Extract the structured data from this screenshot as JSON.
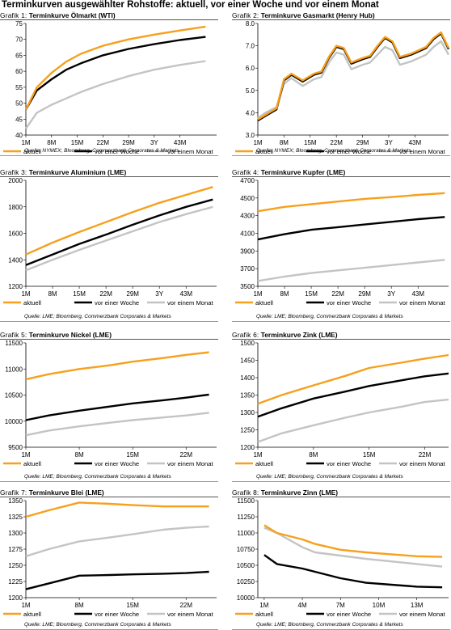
{
  "page_title": "Terminkurven ausgewählter Rohstoffe: aktuell, vor einer Woche und vor einem Monat",
  "colors": {
    "aktuell": "#F7A01C",
    "woche": "#000000",
    "monat": "#C4C4C4"
  },
  "panels": [
    {
      "label": "Grafik 1:",
      "name": "Terminkurve Ölmarkt (WTI)",
      "source": "Quelle: NYMEX; Bloomberg, Commerzbank Corporates & Markets"
    },
    {
      "label": "Grafik 2:",
      "name": "Terminkurve Gasmarkt (Henry Hub)",
      "source": "Quelle: NYMEX; Bloomberg, Commerzbank Corporates & Markets"
    },
    {
      "label": "Grafik 3:",
      "name": "Terminkurve Aluminium (LME)",
      "source": "Quelle: LME; Bloomberg, Commerzbank Corporates & Markets"
    },
    {
      "label": "Grafik 4:",
      "name": "Terminkurve Kupfer (LME)",
      "source": "Quelle: LME; Bloomberg, Commerzbank Corporates & Markets"
    },
    {
      "label": "Grafik 5:",
      "name": "Terminkurve Nickel (LME)",
      "source": "Quelle: LME; Bloomberg, Commerzbank Corporates & Markets"
    },
    {
      "label": "Grafik 6:",
      "name": "Terminkurve Zink (LME)",
      "source": "Quelle: LME; Bloomberg, Commerzbank Corporates & Markets"
    },
    {
      "label": "Grafik 7:",
      "name": "Terminkurve Blei (LME)",
      "source": "Quelle: LME; Bloomberg, Commerzbank Corporates & Markets"
    },
    {
      "label": "Grafik 8:",
      "name": "Terminkurve Zinn (LME)",
      "source": "Quelle: LME; Bloomberg, Commerzbank Corporates & Markets"
    }
  ],
  "chart_data": [
    {
      "type": "line",
      "title": "Terminkurve Ölmarkt (WTI)",
      "x": [
        1,
        4,
        8,
        12,
        16,
        22,
        29,
        36,
        43,
        50
      ],
      "xlim": [
        1,
        53
      ],
      "xticks": [
        1,
        8,
        15,
        22,
        29,
        36,
        43
      ],
      "xticklabels": [
        "1M",
        "8M",
        "15M",
        "22M",
        "29M",
        "3Y",
        "43M"
      ],
      "ylim": [
        40,
        75
      ],
      "yticks": [
        40,
        45,
        50,
        55,
        60,
        65,
        70,
        75
      ],
      "series": [
        {
          "name": "aktuell",
          "values": [
            48,
            55,
            59.5,
            63,
            65.5,
            68,
            70,
            71.5,
            72.8,
            74
          ]
        },
        {
          "name": "vor einer Woche",
          "values": [
            48,
            54,
            57.5,
            60.5,
            62.5,
            65,
            67,
            68.5,
            69.8,
            70.8
          ]
        },
        {
          "name": "vor einem Monat",
          "values": [
            42,
            47,
            49.5,
            51.5,
            53.5,
            56,
            58.5,
            60.5,
            62,
            63.2
          ]
        }
      ]
    },
    {
      "type": "line",
      "title": "Terminkurve Gasmarkt (Henry Hub)",
      "x": [
        1,
        3,
        6,
        8,
        10,
        13,
        16,
        18,
        20,
        22,
        24,
        26,
        29,
        31,
        33,
        35,
        37,
        39,
        42,
        44,
        46,
        48,
        50,
        52
      ],
      "xlim": [
        1,
        52
      ],
      "xticks": [
        1,
        8,
        15,
        22,
        29,
        36,
        43
      ],
      "xticklabels": [
        "1M",
        "8M",
        "15M",
        "22M",
        "29M",
        "3Y",
        "43M"
      ],
      "ylim": [
        3.0,
        8.0
      ],
      "yticks": [
        3.0,
        4.0,
        5.0,
        6.0,
        7.0,
        8.0
      ],
      "series": [
        {
          "name": "aktuell",
          "values": [
            3.7,
            3.9,
            4.2,
            5.5,
            5.75,
            5.45,
            5.75,
            5.85,
            6.5,
            7.0,
            6.9,
            6.25,
            6.45,
            6.55,
            7.0,
            7.4,
            7.2,
            6.5,
            6.65,
            6.8,
            6.95,
            7.35,
            7.6,
            6.9
          ]
        },
        {
          "name": "vor einer Woche",
          "values": [
            3.65,
            3.85,
            4.15,
            5.45,
            5.7,
            5.4,
            5.7,
            5.8,
            6.45,
            6.95,
            6.85,
            6.2,
            6.4,
            6.5,
            6.95,
            7.35,
            7.15,
            6.45,
            6.6,
            6.75,
            6.9,
            7.3,
            7.55,
            6.85
          ]
        },
        {
          "name": "vor einem Monat",
          "values": [
            3.75,
            4.0,
            4.25,
            5.3,
            5.55,
            5.2,
            5.5,
            5.6,
            6.25,
            6.7,
            6.6,
            5.95,
            6.15,
            6.25,
            6.6,
            6.95,
            6.8,
            6.15,
            6.3,
            6.45,
            6.6,
            6.95,
            7.2,
            6.6
          ]
        }
      ]
    },
    {
      "type": "line",
      "title": "Terminkurve Aluminium (LME)",
      "x": [
        1,
        8,
        15,
        22,
        29,
        36,
        43,
        50
      ],
      "xlim": [
        1,
        51
      ],
      "xticks": [
        1,
        8,
        15,
        22,
        29,
        36,
        43
      ],
      "xticklabels": [
        "1M",
        "8M",
        "15M",
        "22M",
        "29M",
        "3Y",
        "43M"
      ],
      "ylim": [
        1200,
        2000
      ],
      "yticks": [
        1200,
        1400,
        1600,
        1800,
        2000
      ],
      "series": [
        {
          "name": "aktuell",
          "values": [
            1440,
            1530,
            1610,
            1685,
            1760,
            1830,
            1890,
            1950
          ]
        },
        {
          "name": "vor einer Woche",
          "values": [
            1360,
            1440,
            1520,
            1590,
            1665,
            1735,
            1800,
            1855
          ]
        },
        {
          "name": "vor einem Monat",
          "values": [
            1320,
            1400,
            1475,
            1545,
            1615,
            1685,
            1745,
            1800
          ]
        }
      ]
    },
    {
      "type": "line",
      "title": "Terminkurve Kupfer (LME)",
      "x": [
        1,
        8,
        15,
        22,
        29,
        36,
        43,
        50
      ],
      "xlim": [
        1,
        51
      ],
      "xticks": [
        1,
        8,
        15,
        22,
        29,
        36,
        43
      ],
      "xticklabels": [
        "1M",
        "8M",
        "15M",
        "22M",
        "29M",
        "3Y",
        "43M"
      ],
      "ylim": [
        3500,
        4700
      ],
      "yticks": [
        3500,
        3700,
        3900,
        4100,
        4300,
        4500,
        4700
      ],
      "series": [
        {
          "name": "aktuell",
          "values": [
            4350,
            4400,
            4430,
            4460,
            4490,
            4510,
            4535,
            4555
          ]
        },
        {
          "name": "vor einer Woche",
          "values": [
            4030,
            4090,
            4140,
            4170,
            4200,
            4230,
            4260,
            4285
          ]
        },
        {
          "name": "vor einem Monat",
          "values": [
            3560,
            3610,
            3650,
            3680,
            3710,
            3740,
            3770,
            3800
          ]
        }
      ]
    },
    {
      "type": "line",
      "title": "Terminkurve Nickel (LME)",
      "x": [
        1,
        4,
        8,
        12,
        15,
        19,
        22,
        25
      ],
      "xlim": [
        1,
        26
      ],
      "xticks": [
        1,
        8,
        15,
        22
      ],
      "xticklabels": [
        "1M",
        "8M",
        "15M",
        "22M"
      ],
      "ylim": [
        9500,
        11500
      ],
      "yticks": [
        9500,
        10000,
        10500,
        11000,
        11500
      ],
      "series": [
        {
          "name": "aktuell",
          "values": [
            10800,
            10900,
            11000,
            11070,
            11140,
            11210,
            11270,
            11320
          ]
        },
        {
          "name": "vor einer Woche",
          "values": [
            10020,
            10110,
            10200,
            10280,
            10340,
            10400,
            10450,
            10510
          ]
        },
        {
          "name": "vor einem Monat",
          "values": [
            9730,
            9820,
            9900,
            9970,
            10020,
            10070,
            10110,
            10160
          ]
        }
      ]
    },
    {
      "type": "line",
      "title": "Terminkurve Zink (LME)",
      "x": [
        1,
        4,
        8,
        12,
        15,
        19,
        22,
        25
      ],
      "xlim": [
        1,
        25
      ],
      "xticks": [
        1,
        8,
        15,
        22
      ],
      "xticklabels": [
        "1M",
        "8M",
        "15M",
        "22M"
      ],
      "ylim": [
        1200,
        1500
      ],
      "yticks": [
        1200,
        1250,
        1300,
        1350,
        1400,
        1450,
        1500
      ],
      "series": [
        {
          "name": "aktuell",
          "values": [
            1325,
            1350,
            1378,
            1405,
            1428,
            1443,
            1455,
            1465
          ]
        },
        {
          "name": "vor einer Woche",
          "values": [
            1288,
            1312,
            1340,
            1360,
            1376,
            1392,
            1404,
            1412
          ]
        },
        {
          "name": "vor einem Monat",
          "values": [
            1215,
            1240,
            1263,
            1285,
            1300,
            1316,
            1330,
            1337
          ]
        }
      ]
    },
    {
      "type": "line",
      "title": "Terminkurve Blei (LME)",
      "x": [
        1,
        4,
        8,
        12,
        15,
        19,
        22,
        25
      ],
      "xlim": [
        1,
        26
      ],
      "xticks": [
        1,
        8,
        15,
        22
      ],
      "xticklabels": [
        "1M",
        "8M",
        "15M",
        "22M"
      ],
      "ylim": [
        1200,
        1350
      ],
      "yticks": [
        1200,
        1225,
        1250,
        1275,
        1300,
        1325,
        1350
      ],
      "series": [
        {
          "name": "aktuell",
          "values": [
            1325,
            1335,
            1347,
            1345,
            1343,
            1341,
            1341,
            1341
          ]
        },
        {
          "name": "vor einer Woche",
          "values": [
            1213,
            1222,
            1234,
            1235,
            1236,
            1237,
            1238,
            1240
          ]
        },
        {
          "name": "vor einem Monat",
          "values": [
            1264,
            1275,
            1287,
            1293,
            1298,
            1305,
            1308,
            1310
          ]
        }
      ]
    },
    {
      "type": "line",
      "title": "Terminkurve Zinn (LME)",
      "x": [
        1,
        2,
        4,
        5,
        7,
        9,
        11,
        13,
        15
      ],
      "xlim": [
        0.5,
        15.5
      ],
      "xticks": [
        1,
        4,
        7,
        10,
        13
      ],
      "xticklabels": [
        "1M",
        "4M",
        "7M",
        "10M",
        "13M"
      ],
      "ylim": [
        10000,
        11500
      ],
      "yticks": [
        10000,
        10250,
        10500,
        10750,
        11000,
        11250,
        11500
      ],
      "series": [
        {
          "name": "aktuell",
          "values": [
            11120,
            11000,
            10900,
            10830,
            10740,
            10700,
            10670,
            10640,
            10630
          ]
        },
        {
          "name": "vor einer Woche",
          "values": [
            10660,
            10520,
            10450,
            10400,
            10300,
            10230,
            10200,
            10170,
            10160
          ]
        },
        {
          "name": "vor einem Monat",
          "values": [
            11080,
            11000,
            10780,
            10700,
            10650,
            10600,
            10560,
            10520,
            10480
          ]
        }
      ]
    }
  ]
}
